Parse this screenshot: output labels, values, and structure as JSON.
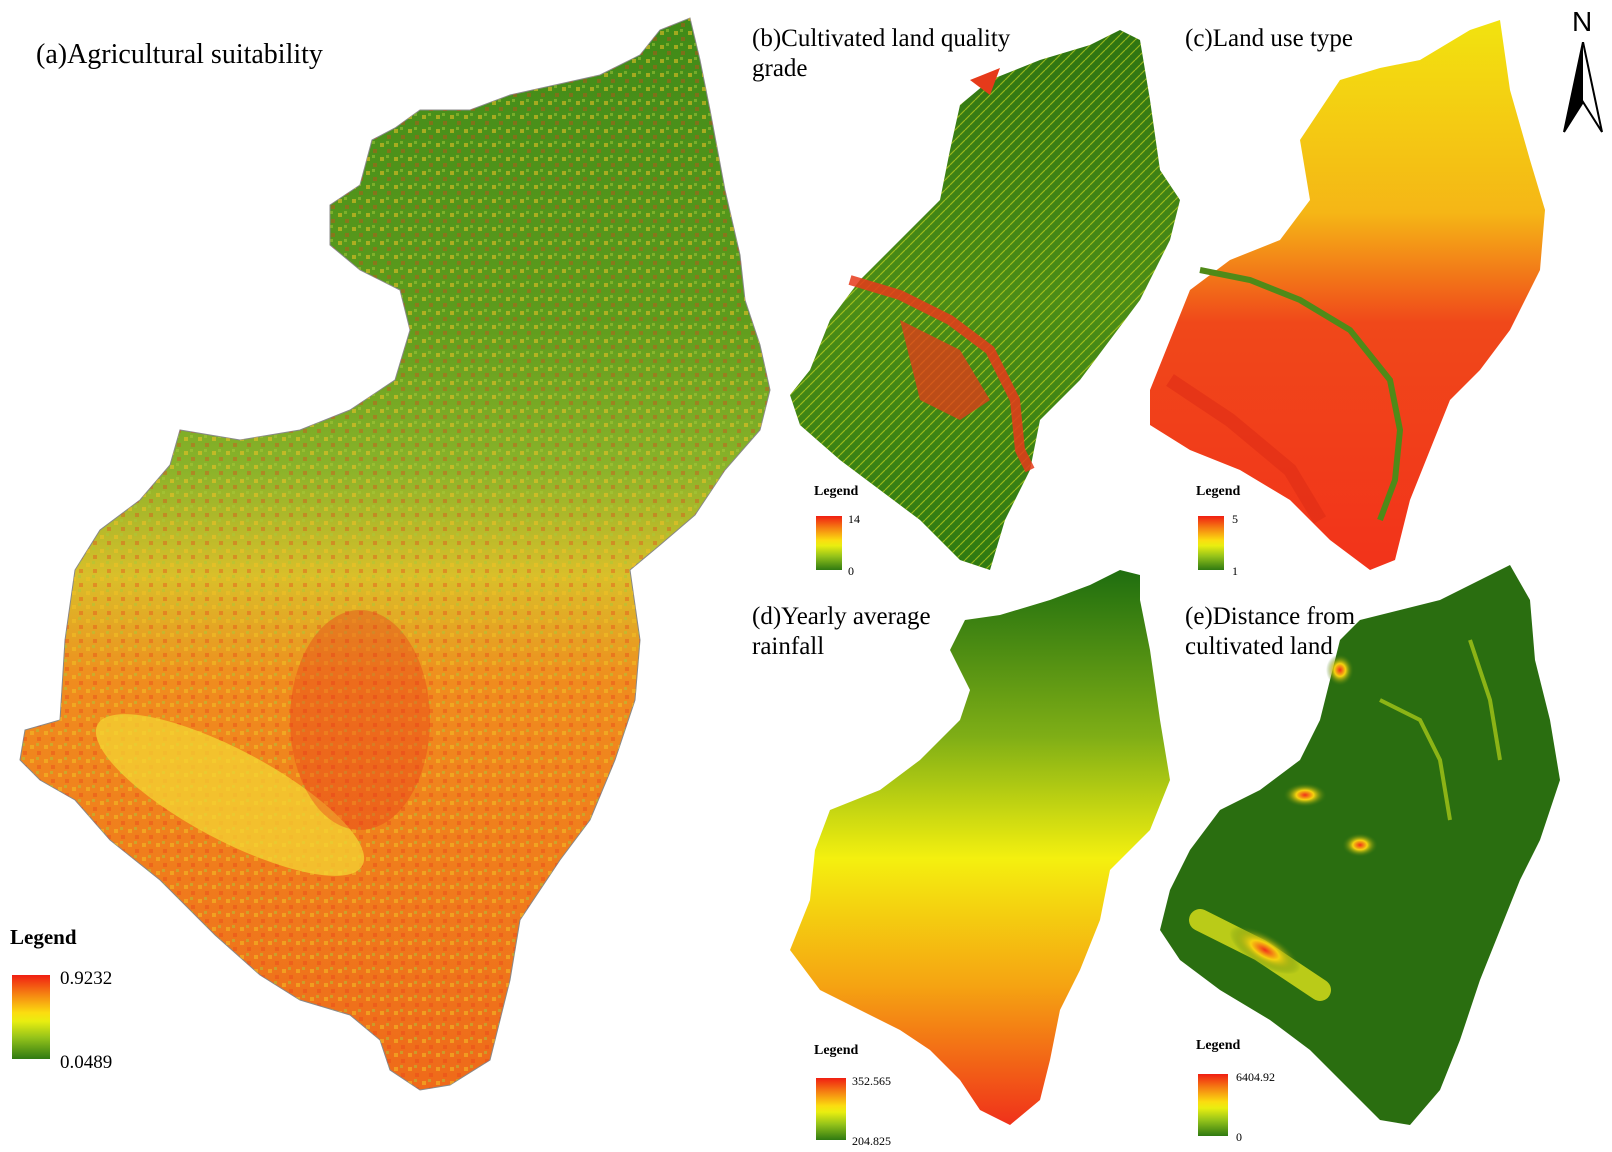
{
  "panels": [
    {
      "id": "a",
      "title": "(a)Agricultural suitability",
      "legend": {
        "title": "Legend",
        "max": "0.9232",
        "min": "0.0489"
      }
    },
    {
      "id": "b",
      "title": "(b)Cultivated land quality\n grade",
      "legend": {
        "title": "Legend",
        "max": "14",
        "min": "0"
      }
    },
    {
      "id": "c",
      "title": "(c)Land use type",
      "legend": {
        "title": "Legend",
        "max": "5",
        "min": "1"
      }
    },
    {
      "id": "d",
      "title": "(d)Yearly average\nrainfall",
      "legend": {
        "title": "Legend",
        "max": "352.565",
        "min": "204.825"
      }
    },
    {
      "id": "e",
      "title": "(e)Distance from\ncultivated land",
      "legend": {
        "title": "Legend",
        "max": "6404.92",
        "min": "0"
      }
    }
  ],
  "north_arrow": {
    "label": "N"
  },
  "colors": {
    "high": "#f01e12",
    "mid": "#fbdd10",
    "low": "#2f7a12",
    "dark_green": "#2a6e10"
  }
}
